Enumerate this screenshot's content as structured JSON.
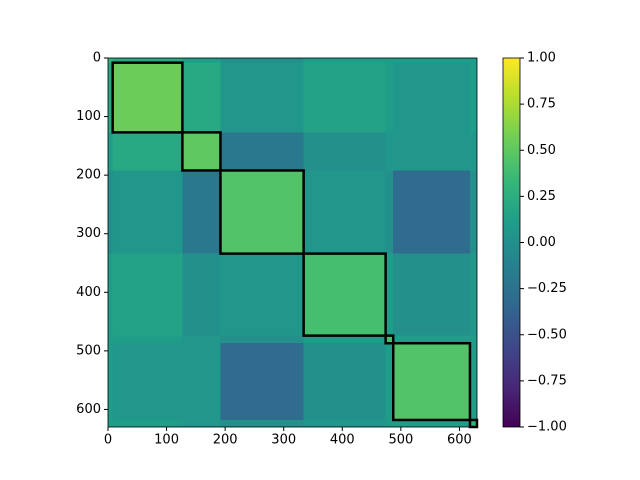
{
  "chart_data": {
    "type": "heatmap",
    "colormap": "viridis",
    "bounds": [
      0,
      8,
      127,
      192,
      334,
      474,
      487,
      618,
      630
    ],
    "values": [
      [
        0.3,
        0.2,
        0.1,
        0.0,
        0.1,
        0.1,
        0.1,
        0.1
      ],
      [
        0.2,
        0.55,
        0.2,
        0.05,
        0.15,
        0.1,
        0.05,
        0.1
      ],
      [
        0.1,
        0.2,
        0.5,
        -0.2,
        0.0,
        0.05,
        0.05,
        0.05
      ],
      [
        0.0,
        0.05,
        -0.2,
        0.45,
        0.05,
        0.0,
        -0.3,
        0.0
      ],
      [
        0.1,
        0.15,
        0.0,
        0.05,
        0.4,
        0.1,
        0.0,
        0.05
      ],
      [
        0.1,
        0.1,
        0.05,
        0.0,
        0.1,
        0.4,
        0.1,
        0.1
      ],
      [
        0.1,
        0.05,
        0.05,
        -0.3,
        0.0,
        0.1,
        0.45,
        0.1
      ],
      [
        0.1,
        0.1,
        0.05,
        0.0,
        0.05,
        0.1,
        0.1,
        0.3
      ]
    ],
    "boxes": [
      [
        8,
        127
      ],
      [
        127,
        192
      ],
      [
        192,
        334
      ],
      [
        334,
        474
      ],
      [
        474,
        487
      ],
      [
        487,
        618
      ],
      [
        618,
        630
      ]
    ],
    "box_color": "#000000",
    "xlim": [
      0,
      630
    ],
    "ylim": [
      630,
      0
    ],
    "xticks": [
      0,
      100,
      200,
      300,
      400,
      500,
      600
    ],
    "yticks": [
      0,
      100,
      200,
      300,
      400,
      500,
      600
    ],
    "clim": [
      -1,
      1
    ],
    "cticks": [
      {
        "value": 1,
        "label": "1.00"
      },
      {
        "value": 0.75,
        "label": "0.75"
      },
      {
        "value": 0.5,
        "label": "0.50"
      },
      {
        "value": 0.25,
        "label": "0.25"
      },
      {
        "value": 0,
        "label": "0.00"
      },
      {
        "value": -0.25,
        "label": "−0.25"
      },
      {
        "value": -0.5,
        "label": "−0.50"
      },
      {
        "value": -0.75,
        "label": "−0.75"
      },
      {
        "value": -1,
        "label": "−1.00"
      }
    ]
  }
}
